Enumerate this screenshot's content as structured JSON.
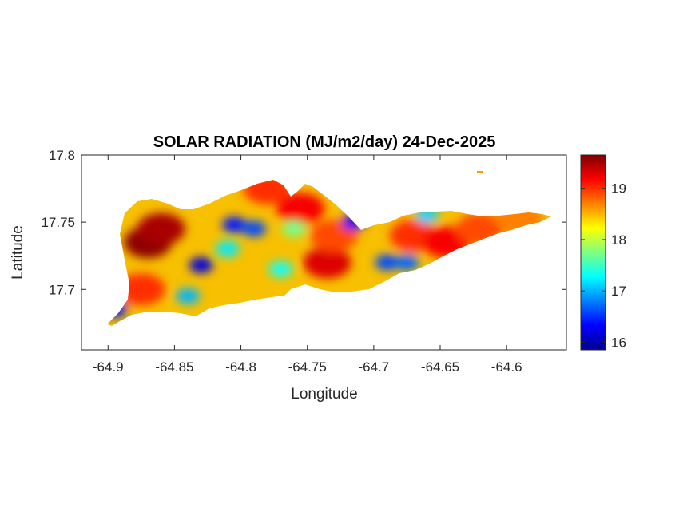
{
  "chart_data": {
    "type": "heatmap",
    "title": "SOLAR RADIATION (MJ/m2/day) 24-Dec-2025",
    "xlabel": "Longitude",
    "ylabel": "Latitude",
    "xlim": [
      -64.92,
      -64.555
    ],
    "ylim": [
      17.655,
      17.8
    ],
    "x_ticks": [
      -64.9,
      -64.85,
      -64.8,
      -64.75,
      -64.7,
      -64.65,
      -64.6
    ],
    "x_tick_labels": [
      "-64.9",
      "-64.85",
      "-64.8",
      "-64.75",
      "-64.7",
      "-64.65",
      "-64.6"
    ],
    "y_ticks": [
      17.7,
      17.75,
      17.8
    ],
    "y_tick_labels": [
      "17.7",
      "17.75",
      "17.8"
    ],
    "colorbar": {
      "colormap": "jet",
      "clim": [
        15.85,
        19.65
      ],
      "ticks": [
        16,
        17,
        18,
        19
      ],
      "tick_labels": [
        "16",
        "17",
        "18",
        "19"
      ]
    },
    "grid": false,
    "hot_spots": [
      {
        "lon": -64.87,
        "lat": 17.735,
        "value": 19.6
      },
      {
        "lon": -64.86,
        "lat": 17.745,
        "value": 19.5
      },
      {
        "lon": -64.735,
        "lat": 17.72,
        "value": 19.3
      },
      {
        "lon": -64.755,
        "lat": 17.76,
        "value": 19.2
      },
      {
        "lon": -64.78,
        "lat": 17.775,
        "value": 19.0
      },
      {
        "lon": -64.67,
        "lat": 17.74,
        "value": 19.0
      },
      {
        "lon": -64.645,
        "lat": 17.735,
        "value": 19.2
      },
      {
        "lon": -64.62,
        "lat": 17.745,
        "value": 18.9
      },
      {
        "lon": -64.59,
        "lat": 17.752,
        "value": 18.7
      },
      {
        "lon": -64.73,
        "lat": 17.74,
        "value": 18.9
      },
      {
        "lon": -64.875,
        "lat": 17.7,
        "value": 19.0
      }
    ],
    "cool_spots": [
      {
        "lon": -64.83,
        "lat": 17.718,
        "value": 16.2
      },
      {
        "lon": -64.805,
        "lat": 17.748,
        "value": 16.4
      },
      {
        "lon": -64.79,
        "lat": 17.745,
        "value": 16.6
      },
      {
        "lon": -64.715,
        "lat": 17.75,
        "value": 16.3
      },
      {
        "lon": -64.69,
        "lat": 17.72,
        "value": 16.6
      },
      {
        "lon": -64.675,
        "lat": 17.72,
        "value": 16.7
      },
      {
        "lon": -64.895,
        "lat": 17.685,
        "value": 16.4
      },
      {
        "lon": -64.84,
        "lat": 17.695,
        "value": 17.0
      },
      {
        "lon": -64.81,
        "lat": 17.73,
        "value": 17.2
      },
      {
        "lon": -64.77,
        "lat": 17.715,
        "value": 17.3
      },
      {
        "lon": -64.66,
        "lat": 17.755,
        "value": 17.1
      },
      {
        "lon": -64.76,
        "lat": 17.745,
        "value": 17.7
      }
    ]
  }
}
